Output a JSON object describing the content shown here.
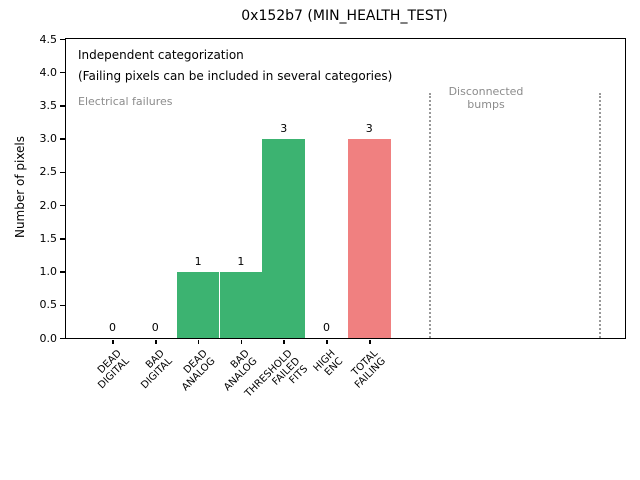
{
  "figure": {
    "title": "0x152b7 (MIN_HEALTH_TEST)",
    "ylabel": "Number of pixels"
  },
  "annotations": {
    "independent_line1": "Independent categorization",
    "independent_line2": "(Failing pixels can be included in several categories)",
    "electrical_failures": "Electrical failures",
    "disconnected_bumps": "Disconnected\nbumps"
  },
  "colors": {
    "bar_green": "#3cb371",
    "bar_red": "#f08080",
    "annotation_gray": "#8c8c8c",
    "separator_gray": "#999999",
    "frame_black": "#000000"
  },
  "chart_data": {
    "type": "bar",
    "title": "0x152b7 (MIN_HEALTH_TEST)",
    "xlabel": "",
    "ylabel": "Number of pixels",
    "ylim": [
      0.0,
      4.5
    ],
    "ytick_step": 0.5,
    "grid": false,
    "legend_position": "none",
    "categories": [
      "DEAD\nDIGITAL",
      "BAD\nDIGITAL",
      "DEAD\nANALOG",
      "BAD\nANALOG",
      "THRESHOLD\nFAILED\nFITS",
      "HIGH\nENC",
      "TOTAL\nFAILING"
    ],
    "values": [
      0,
      0,
      1,
      1,
      3,
      0,
      3
    ],
    "value_labels": [
      "0",
      "0",
      "1",
      "1",
      "3",
      "0",
      "3"
    ],
    "bar_colors": [
      "#3cb371",
      "#3cb371",
      "#3cb371",
      "#3cb371",
      "#3cb371",
      "#3cb371",
      "#f08080"
    ],
    "annotations_text": [
      "Independent categorization",
      "(Failing pixels can be included in several categories)",
      "Electrical failures",
      "Disconnected bumps"
    ]
  }
}
